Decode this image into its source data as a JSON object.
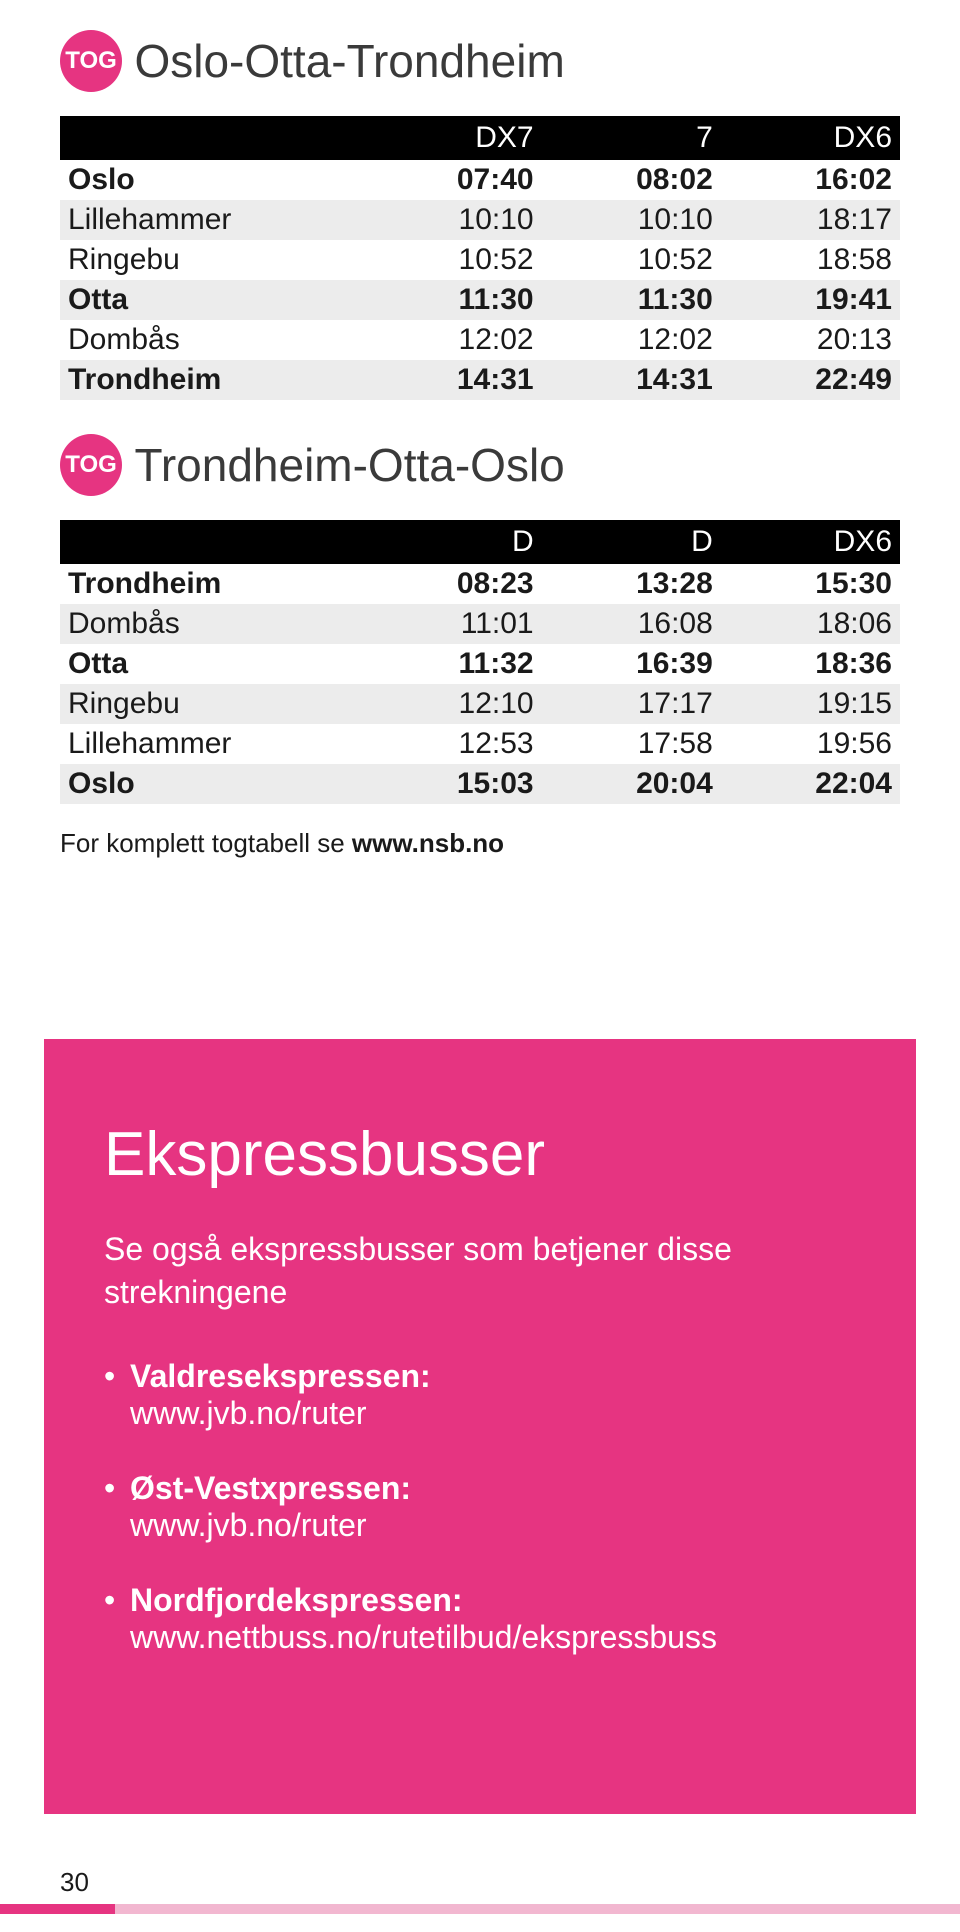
{
  "colors": {
    "brand_pink": "#e63481",
    "text": "#1a1a1a",
    "alt_row_bg": "#ececec",
    "header_bg": "#000000",
    "header_fg": "#ffffff"
  },
  "badge_label": "TOG",
  "table1": {
    "title": "Oslo-Otta-Trondheim",
    "columns": [
      "",
      "DX7",
      "7",
      "DX6"
    ],
    "rows": [
      {
        "station": "Oslo",
        "times": [
          "07:40",
          "08:02",
          "16:02"
        ],
        "bold": true
      },
      {
        "station": "Lillehammer",
        "times": [
          "10:10",
          "10:10",
          "18:17"
        ],
        "bold": false
      },
      {
        "station": "Ringebu",
        "times": [
          "10:52",
          "10:52",
          "18:58"
        ],
        "bold": false
      },
      {
        "station": "Otta",
        "times": [
          "11:30",
          "11:30",
          "19:41"
        ],
        "bold": true
      },
      {
        "station": "Dombås",
        "times": [
          "12:02",
          "12:02",
          "20:13"
        ],
        "bold": false
      },
      {
        "station": "Trondheim",
        "times": [
          "14:31",
          "14:31",
          "22:49"
        ],
        "bold": true
      }
    ]
  },
  "table2": {
    "title": "Trondheim-Otta-Oslo",
    "columns": [
      "",
      "D",
      "D",
      "DX6"
    ],
    "rows": [
      {
        "station": "Trondheim",
        "times": [
          "08:23",
          "13:28",
          "15:30"
        ],
        "bold": true
      },
      {
        "station": "Dombås",
        "times": [
          "11:01",
          "16:08",
          "18:06"
        ],
        "bold": false
      },
      {
        "station": "Otta",
        "times": [
          "11:32",
          "16:39",
          "18:36"
        ],
        "bold": true
      },
      {
        "station": "Ringebu",
        "times": [
          "12:10",
          "17:17",
          "19:15"
        ],
        "bold": false
      },
      {
        "station": "Lillehammer",
        "times": [
          "12:53",
          "17:58",
          "19:56"
        ],
        "bold": false
      },
      {
        "station": "Oslo",
        "times": [
          "15:03",
          "20:04",
          "22:04"
        ],
        "bold": true
      }
    ]
  },
  "footnote": {
    "prefix": "For komplett togtabell se ",
    "link": "www.nsb.no"
  },
  "express": {
    "heading": "Ekspressbusser",
    "subtitle": "Se også ekspressbusser som betjener disse strekningene",
    "services": [
      {
        "name": "Valdresekspressen:",
        "url": "www.jvb.no/ruter"
      },
      {
        "name": "Øst-Vestxpressen:",
        "url": "www.jvb.no/ruter"
      },
      {
        "name": "Nordfjordekspressen:",
        "url": "www.nettbuss.no/rutetilbud/ekspressbuss"
      }
    ]
  },
  "page_number": "30"
}
